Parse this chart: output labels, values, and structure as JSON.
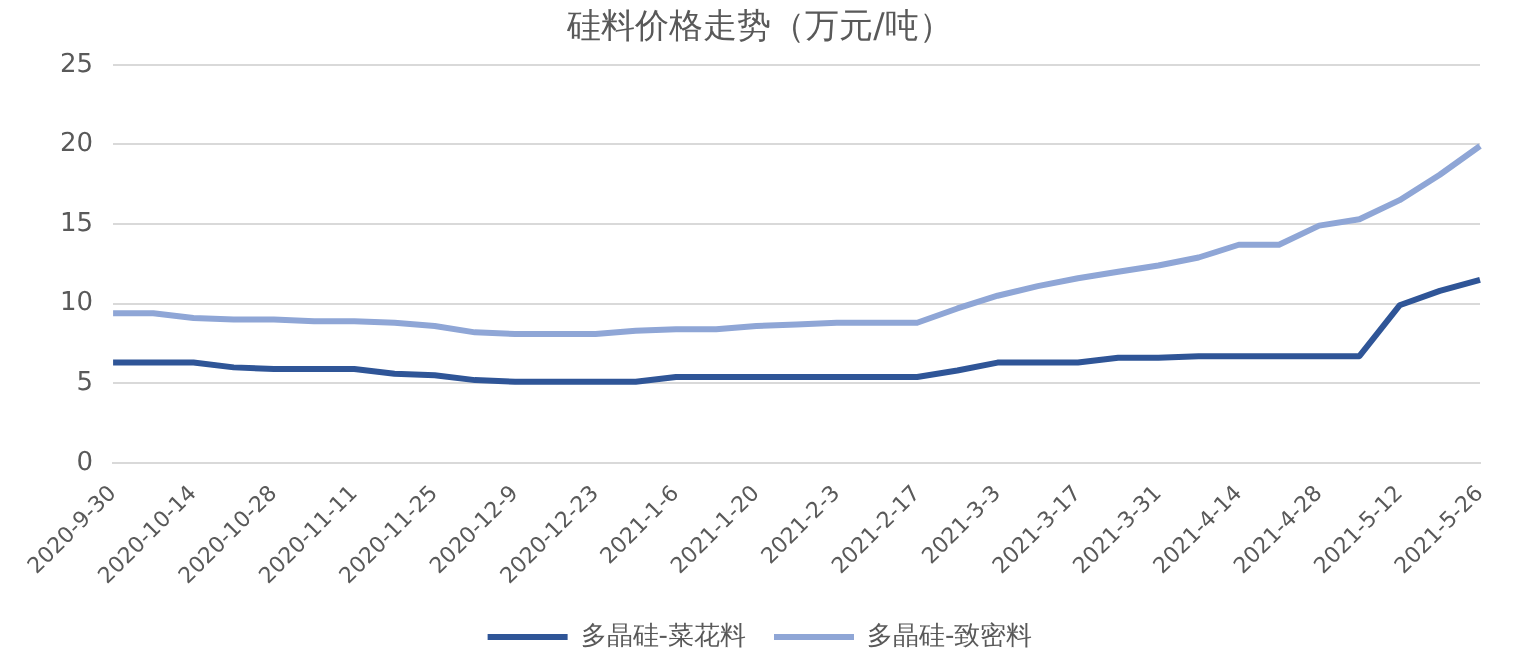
{
  "chart_data": {
    "type": "line",
    "title": "硅料价格走势（万元/吨）",
    "categories": [
      "2020-9-30",
      null,
      "2020-10-14",
      null,
      "2020-10-28",
      null,
      "2020-11-11",
      null,
      "2020-11-25",
      null,
      "2020-12-9",
      null,
      "2020-12-23",
      null,
      "2021-1-6",
      null,
      "2021-1-20",
      null,
      "2021-2-3",
      null,
      "2021-2-17",
      null,
      "2021-3-3",
      null,
      "2021-3-17",
      null,
      "2021-3-31",
      null,
      "2021-4-14",
      null,
      "2021-4-28",
      null,
      "2021-5-12",
      null,
      "2021-5-26"
    ],
    "series": [
      {
        "name": "多晶硅-菜花料",
        "color": "#2f5597",
        "values": [
          6.3,
          6.3,
          6.3,
          6.0,
          5.9,
          5.9,
          5.9,
          5.6,
          5.5,
          5.2,
          5.1,
          5.1,
          5.1,
          5.1,
          5.4,
          5.4,
          5.4,
          5.4,
          5.4,
          5.4,
          5.4,
          5.8,
          6.3,
          6.3,
          6.3,
          6.6,
          6.6,
          6.7,
          6.7,
          6.7,
          6.7,
          6.7,
          9.9,
          10.8,
          11.5
        ]
      },
      {
        "name": "多晶硅-致密料",
        "color": "#8fa6d6",
        "values": [
          9.4,
          9.4,
          9.1,
          9.0,
          9.0,
          8.9,
          8.9,
          8.8,
          8.6,
          8.2,
          8.1,
          8.1,
          8.1,
          8.3,
          8.4,
          8.4,
          8.6,
          8.7,
          8.8,
          8.8,
          8.8,
          9.7,
          10.5,
          11.1,
          11.6,
          12.0,
          12.4,
          12.9,
          13.7,
          13.7,
          14.9,
          15.3,
          16.5,
          18.1,
          19.9
        ]
      }
    ],
    "ylim": [
      0,
      25
    ],
    "yticks": [
      0,
      5,
      10,
      15,
      20,
      25
    ],
    "grid": "y",
    "legend": "bottom",
    "marker": "none",
    "line_style": "solid"
  }
}
